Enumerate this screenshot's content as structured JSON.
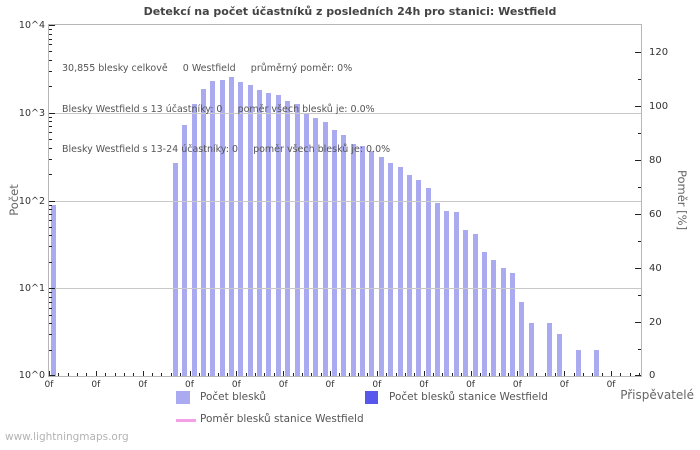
{
  "title": "Detekcí na počet účastníků z posledních 24h pro stanici: Westfield",
  "annotations": [
    "30,855 blesky celkově     0 Westfield     průměrný poměr: 0%",
    "Blesky Westfield s 13 účastníky: 0     poměr všech blesků je: 0.0%",
    "Blesky Westfield s 13-24 účastníky: 0     poměr všech blesků je: 0.0%"
  ],
  "axes": {
    "y_left_label": "Počet",
    "y_right_label": "Poměr [%]",
    "x_label": "Přispěvatelé",
    "y_left_ticks": [
      "10^0",
      "10^1",
      "10^2",
      "10^3",
      "10^4"
    ],
    "y_right_ticks": [
      0,
      20,
      40,
      60,
      80,
      100,
      120
    ],
    "x_tick_label": "0f"
  },
  "legend": [
    {
      "label": "Počet blesků",
      "color": "#aaaaf0",
      "type": "bar"
    },
    {
      "label": "Počet blesků stanice Westfield",
      "color": "#5757ec",
      "type": "bar"
    },
    {
      "label": "Poměr blesků stanice Westfield",
      "color": "#f4a0e6",
      "type": "line"
    }
  ],
  "footer": "www.lightningmaps.org",
  "colors": {
    "bar": "#aaaaf0",
    "station_bar": "#5757ec",
    "ratio_line": "#f4a0e6",
    "grid": "#c9c9c9",
    "tick": "#222222",
    "tick_label": "#333333"
  },
  "chart_data": {
    "type": "bar",
    "title": "Detekcí na počet účastníků z posledních 24h pro stanici: Westfield",
    "xlabel": "Přispěvatelé",
    "ylabel_left": "Počet",
    "ylabel_right": "Poměr [%]",
    "yscale": "log",
    "ylim": [
      1,
      10000
    ],
    "y2lim": [
      0,
      130
    ],
    "x_slots": 64,
    "x_label_every": 5,
    "grid": true,
    "legend_position": "bottom",
    "total_strikes_label": "30,855 blesky celkově",
    "station_strikes": 0,
    "average_ratio_percent": 0,
    "bars": [
      {
        "participants": 0,
        "count": 90
      },
      {
        "participants": 13,
        "count": 270
      },
      {
        "participants": 14,
        "count": 720
      },
      {
        "participants": 15,
        "count": 1270
      },
      {
        "participants": 16,
        "count": 1850
      },
      {
        "participants": 17,
        "count": 2300
      },
      {
        "participants": 18,
        "count": 2360
      },
      {
        "participants": 19,
        "count": 2570
      },
      {
        "participants": 20,
        "count": 2220
      },
      {
        "participants": 21,
        "count": 2070
      },
      {
        "participants": 22,
        "count": 1830
      },
      {
        "participants": 23,
        "count": 1700
      },
      {
        "participants": 24,
        "count": 1590
      },
      {
        "participants": 25,
        "count": 1370
      },
      {
        "participants": 26,
        "count": 1250
      },
      {
        "participants": 27,
        "count": 960
      },
      {
        "participants": 28,
        "count": 870
      },
      {
        "participants": 29,
        "count": 780
      },
      {
        "participants": 30,
        "count": 640
      },
      {
        "participants": 31,
        "count": 560
      },
      {
        "participants": 32,
        "count": 445
      },
      {
        "participants": 33,
        "count": 420
      },
      {
        "participants": 34,
        "count": 370
      },
      {
        "participants": 35,
        "count": 310
      },
      {
        "participants": 36,
        "count": 270
      },
      {
        "participants": 37,
        "count": 240
      },
      {
        "participants": 38,
        "count": 195
      },
      {
        "participants": 39,
        "count": 170
      },
      {
        "participants": 40,
        "count": 140
      },
      {
        "participants": 41,
        "count": 94
      },
      {
        "participants": 42,
        "count": 76
      },
      {
        "participants": 43,
        "count": 74
      },
      {
        "participants": 44,
        "count": 46
      },
      {
        "participants": 45,
        "count": 42
      },
      {
        "participants": 46,
        "count": 26
      },
      {
        "participants": 47,
        "count": 21
      },
      {
        "participants": 48,
        "count": 17
      },
      {
        "participants": 49,
        "count": 15
      },
      {
        "participants": 50,
        "count": 7
      },
      {
        "participants": 51,
        "count": 4
      },
      {
        "participants": 53,
        "count": 4
      },
      {
        "participants": 54,
        "count": 3
      },
      {
        "participants": 56,
        "count": 2
      },
      {
        "participants": 58,
        "count": 2
      }
    ],
    "station_bars": [],
    "ratio_series_percent": 0
  }
}
